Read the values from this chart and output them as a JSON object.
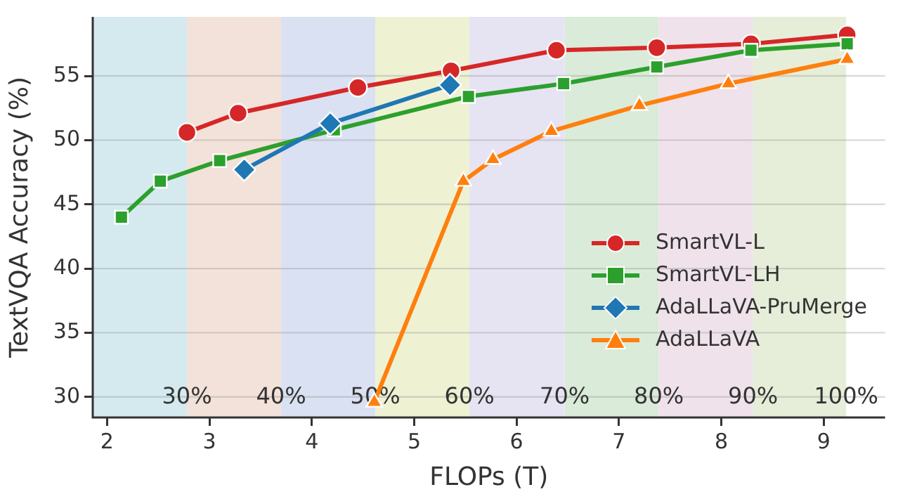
{
  "chart_data": {
    "type": "line",
    "xlabel": "FLOPs (T)",
    "ylabel": "TextVQA Accuracy (%)",
    "xlim": [
      1.86,
      9.6
    ],
    "xticks": [
      2,
      3,
      4,
      5,
      6,
      7,
      8,
      9
    ],
    "ylim": [
      28.4,
      59.6
    ],
    "yticks": [
      30,
      35,
      40,
      45,
      50,
      55
    ],
    "grid": "y",
    "legend": "lower right",
    "line_style": "solid",
    "bands": [
      {
        "axis": "x",
        "from": 1.86,
        "to": 2.78,
        "label": "30%",
        "color": "#d5eaef"
      },
      {
        "axis": "x",
        "from": 2.78,
        "to": 3.7,
        "label": "40%",
        "color": "#f3e2d9"
      },
      {
        "axis": "x",
        "from": 3.7,
        "to": 4.62,
        "label": "50%",
        "color": "#dae1f2"
      },
      {
        "axis": "x",
        "from": 4.62,
        "to": 5.54,
        "label": "60%",
        "color": "#eef2d3"
      },
      {
        "axis": "x",
        "from": 5.54,
        "to": 6.47,
        "label": "70%",
        "color": "#e6e3f3"
      },
      {
        "axis": "x",
        "from": 6.47,
        "to": 7.39,
        "label": "80%",
        "color": "#daebd9"
      },
      {
        "axis": "x",
        "from": 7.39,
        "to": 8.31,
        "label": "90%",
        "color": "#f0e2ea"
      },
      {
        "axis": "x",
        "from": 8.31,
        "to": 9.22,
        "label": "100%",
        "color": "#e6eed9"
      }
    ],
    "series": [
      {
        "name": "SmartVL-L",
        "color": "#d62728",
        "marker": "circle",
        "x": [
          2.78,
          3.28,
          4.45,
          5.36,
          6.39,
          7.37,
          8.29,
          9.23
        ],
        "values": [
          50.6,
          52.1,
          54.1,
          55.4,
          57.0,
          57.2,
          57.5,
          58.2
        ]
      },
      {
        "name": "SmartVL-LH",
        "color": "#2ca02c",
        "marker": "square",
        "x": [
          2.14,
          2.52,
          3.1,
          4.22,
          5.53,
          6.46,
          7.37,
          8.29,
          9.23
        ],
        "values": [
          44.0,
          46.8,
          48.4,
          50.8,
          53.4,
          54.4,
          55.7,
          57.0,
          57.5
        ]
      },
      {
        "name": "AdaLLaVA-PruMerge",
        "color": "#1f77b4",
        "marker": "diamond",
        "x": [
          3.34,
          4.18,
          5.35
        ],
        "values": [
          47.7,
          51.3,
          54.3
        ]
      },
      {
        "name": "AdaLLaVA",
        "color": "#ff7f0e",
        "marker": "triangle",
        "x": [
          4.61,
          5.48,
          5.77,
          6.34,
          7.2,
          8.07,
          9.23
        ],
        "values": [
          29.6,
          46.8,
          48.5,
          50.7,
          52.7,
          54.4,
          56.3
        ]
      }
    ]
  }
}
